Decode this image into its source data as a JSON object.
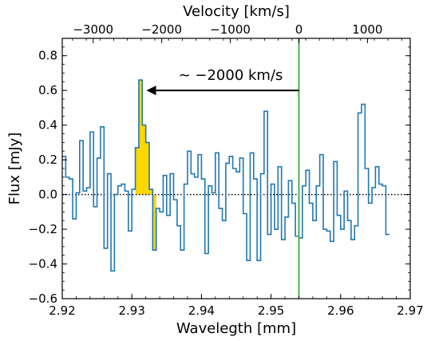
{
  "chart_data": {
    "type": "line",
    "step": true,
    "x_axis": {
      "label": "Wavelegth [mm]",
      "lim": [
        2.92,
        2.97
      ],
      "ticks": [
        2.92,
        2.93,
        2.94,
        2.95,
        2.96,
        2.97
      ],
      "tick_labels": [
        "2.92",
        "2.93",
        "2.94",
        "2.95",
        "2.96",
        "2.97"
      ]
    },
    "x2_axis": {
      "label": "Velocity [km/s]",
      "ticks": [
        -3000,
        -2000,
        -1000,
        0,
        1000
      ],
      "tick_labels": [
        "−3000",
        "−2000",
        "−1000",
        "0",
        "1000"
      ]
    },
    "y_axis": {
      "label": "Flux [mJy]",
      "lim": [
        -0.6,
        0.9
      ],
      "ticks": [
        -0.6,
        -0.4,
        -0.2,
        0.0,
        0.2,
        0.4,
        0.6,
        0.8
      ],
      "tick_labels": [
        "−0.6",
        "−0.4",
        "−0.2",
        "0.0",
        "0.2",
        "0.4",
        "0.6",
        "0.8"
      ]
    },
    "series": [
      {
        "color": "#1f77b4",
        "x_start": 2.92,
        "x_step": 0.0005,
        "y": [
          0.22,
          0.1,
          0.09,
          -0.14,
          0.01,
          0.31,
          0.02,
          0.04,
          0.36,
          -0.07,
          0.21,
          0.39,
          -0.31,
          0.12,
          -0.44,
          0.0,
          0.05,
          0.06,
          0.02,
          -0.21,
          0.03,
          0.27,
          0.66,
          0.4,
          0.3,
          0.03,
          -0.32,
          -0.08,
          -0.1,
          0.11,
          -0.12,
          0.12,
          -0.03,
          -0.18,
          -0.32,
          0.06,
          0.25,
          0.12,
          0.1,
          0.23,
          0.09,
          -0.34,
          0.05,
          0.01,
          0.24,
          -0.08,
          -0.15,
          0.18,
          0.22,
          0.15,
          0.13,
          0.21,
          -0.11,
          -0.38,
          0.24,
          0.09,
          -0.38,
          0.12,
          0.48,
          -0.23,
          0.06,
          -0.2,
          0.16,
          -0.26,
          -0.13,
          0.08,
          -0.05,
          -0.24,
          -0.25,
          0.05,
          0.14,
          -0.05,
          -0.15,
          0.05,
          0.23,
          -0.2,
          -0.21,
          -0.27,
          0.19,
          -0.12,
          -0.2,
          0.02,
          -0.15,
          -0.26,
          -0.18,
          0.47,
          0.52,
          0.15,
          -0.05,
          0.04,
          0.16,
          0.06,
          0.05,
          -0.23
        ]
      }
    ],
    "highlight": {
      "x_range": [
        2.9305,
        2.9335
      ],
      "color": "#ffd700"
    },
    "zero_line": {
      "y": 0.0,
      "style": "dotted",
      "color": "#000000"
    },
    "vline": {
      "x": 2.954,
      "color": "#4caf50"
    },
    "annotation": {
      "text": "∼ −2000 km/s",
      "arrow_from_x": 2.954,
      "arrow_to_x": 2.9321,
      "arrow_y": 0.6
    },
    "grid": false,
    "legend": "none"
  }
}
